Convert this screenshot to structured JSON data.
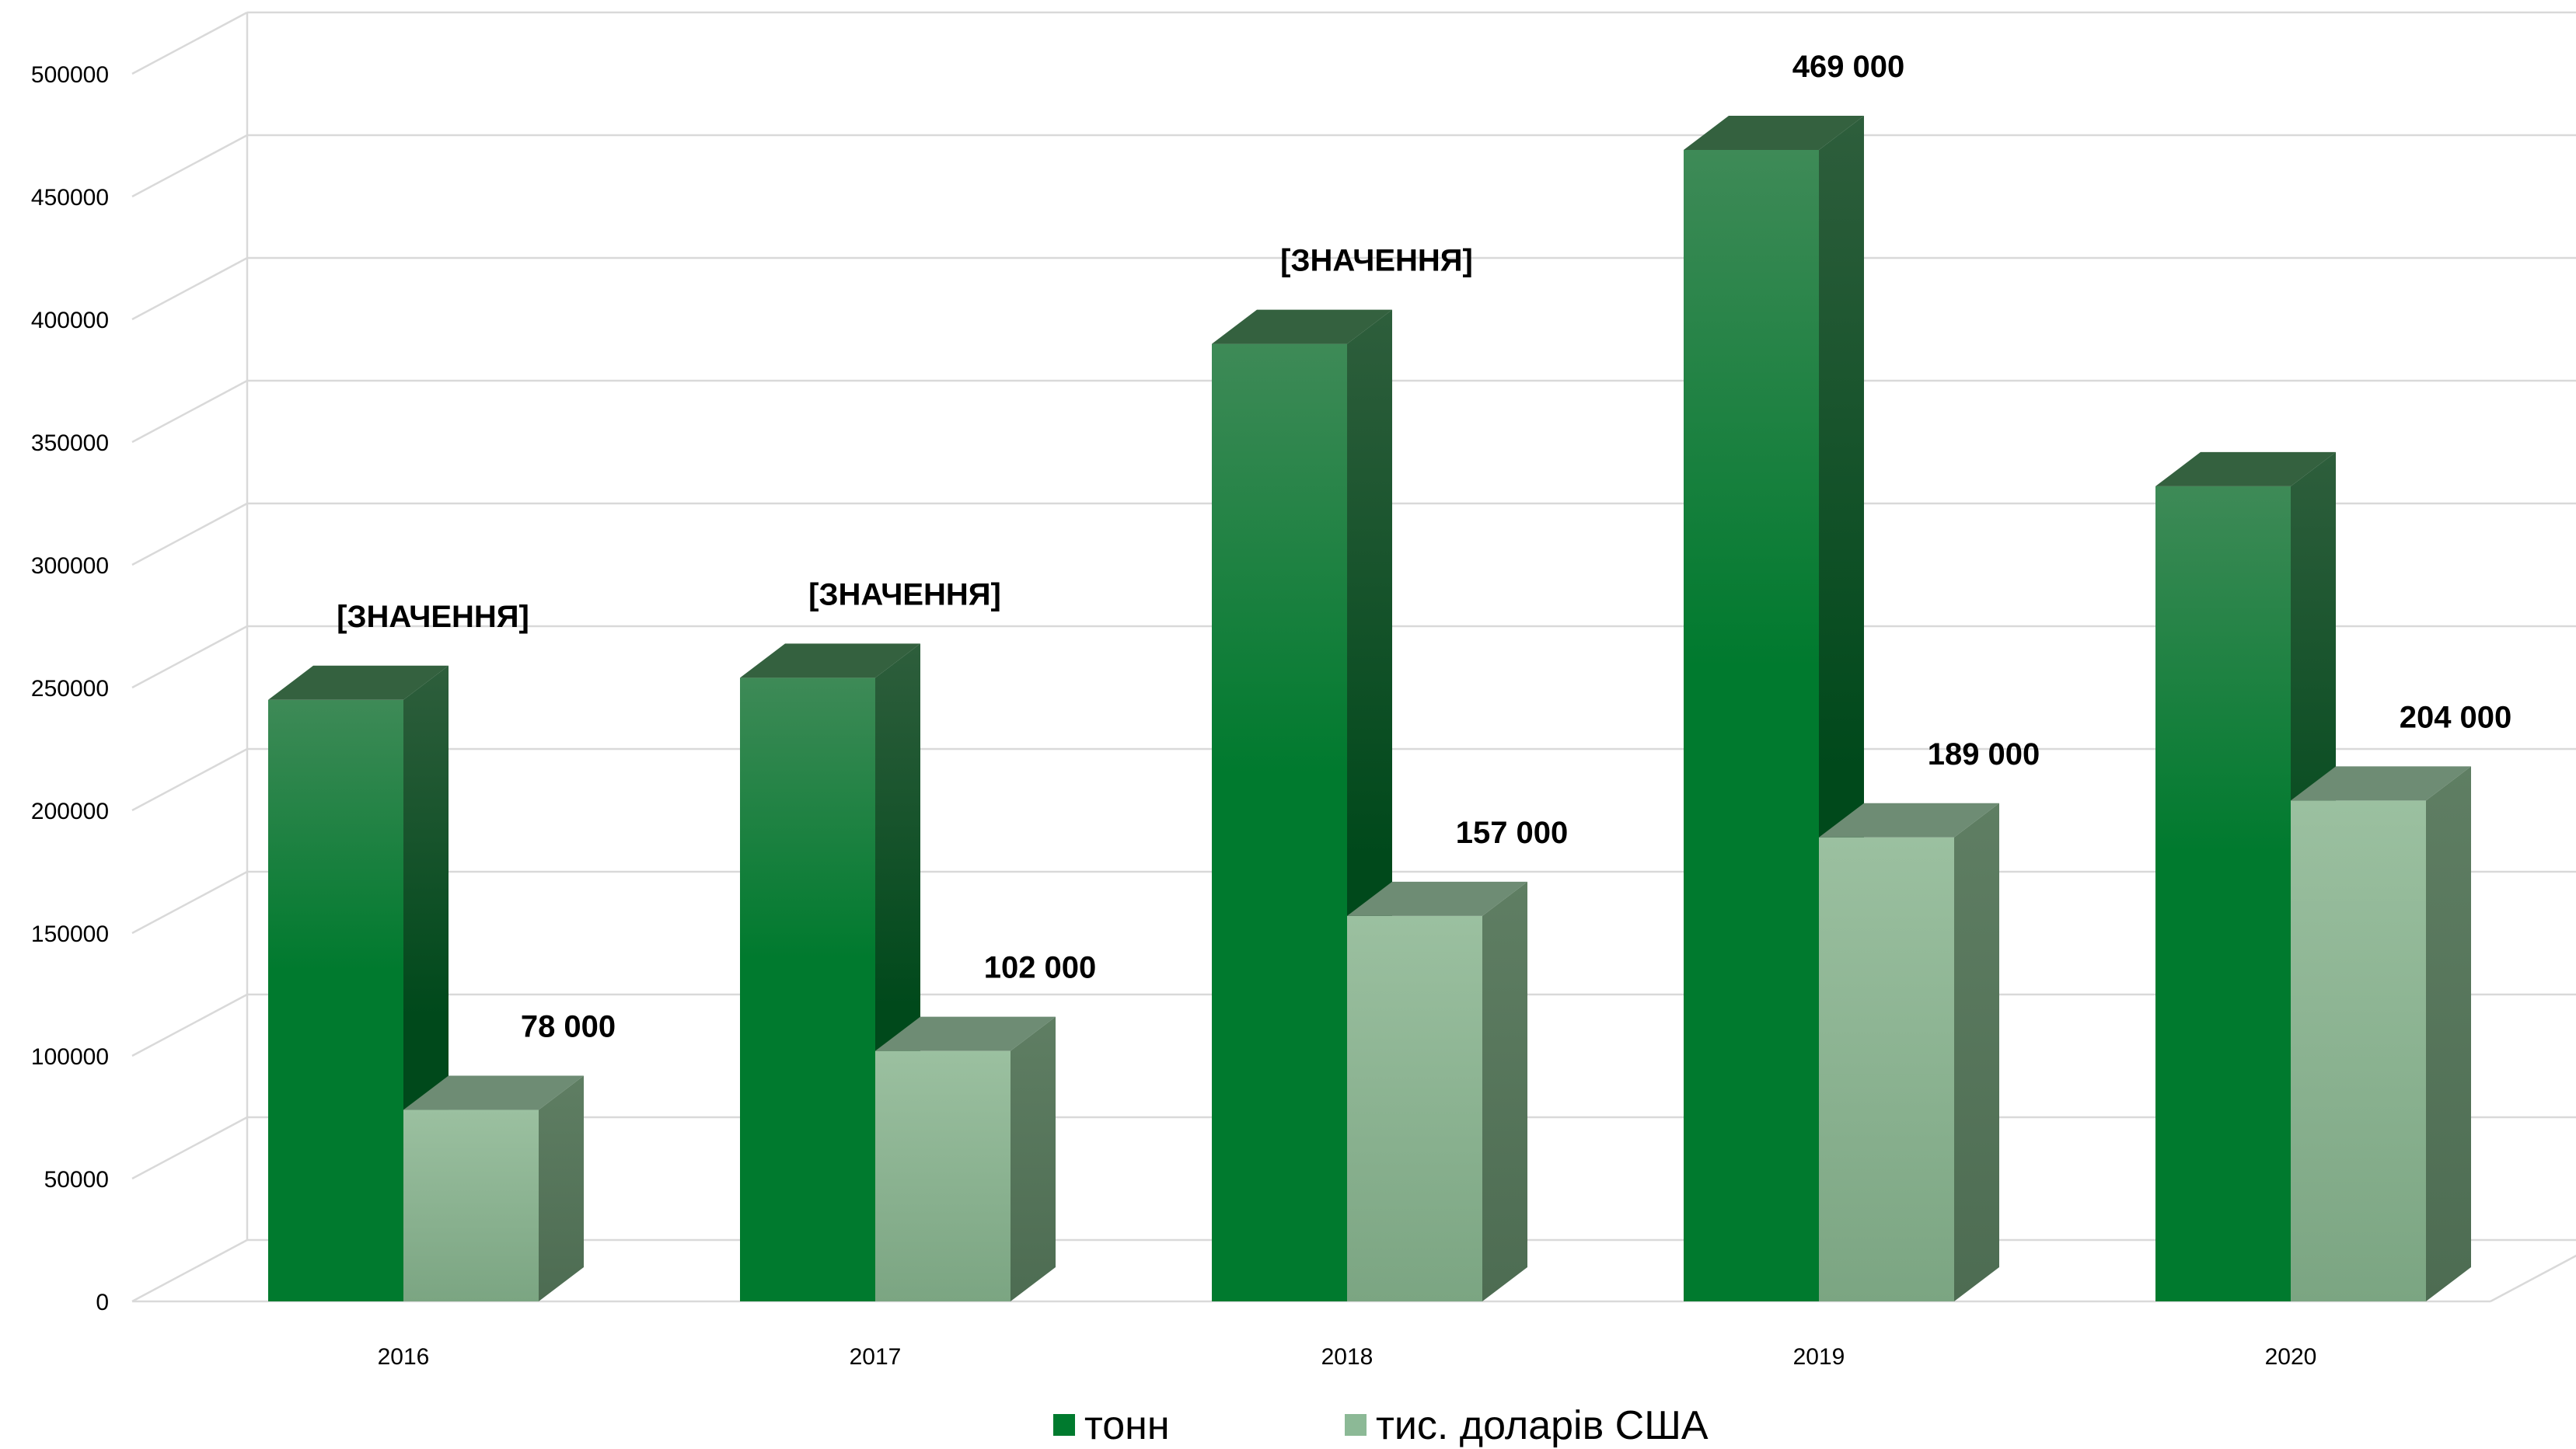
{
  "chart_data": {
    "type": "bar",
    "style": "3d-clustered-column",
    "categories": [
      "2016",
      "2017",
      "2018",
      "2019",
      "2020"
    ],
    "series": [
      {
        "name": "тонн",
        "values": [
          245000,
          254000,
          390000,
          469000,
          332000
        ],
        "labels": [
          "[ЗНАЧЕННЯ]",
          "[ЗНАЧЕННЯ]",
          "[ЗНАЧЕННЯ]",
          "469 000",
          ""
        ],
        "color": "#007A2E"
      },
      {
        "name": "тис. доларів США",
        "values": [
          78000,
          102000,
          157000,
          189000,
          204000
        ],
        "labels": [
          "78 000",
          "102 000",
          "157 000",
          "189 000",
          "204 000"
        ],
        "color": "#8CB996"
      }
    ],
    "ylim": [
      0,
      500000
    ],
    "yticks": [
      "0",
      "50000",
      "100000",
      "150000",
      "200000",
      "250000",
      "300000",
      "350000",
      "400000",
      "450000",
      "500000"
    ],
    "grid": true,
    "legend": "bottom"
  }
}
